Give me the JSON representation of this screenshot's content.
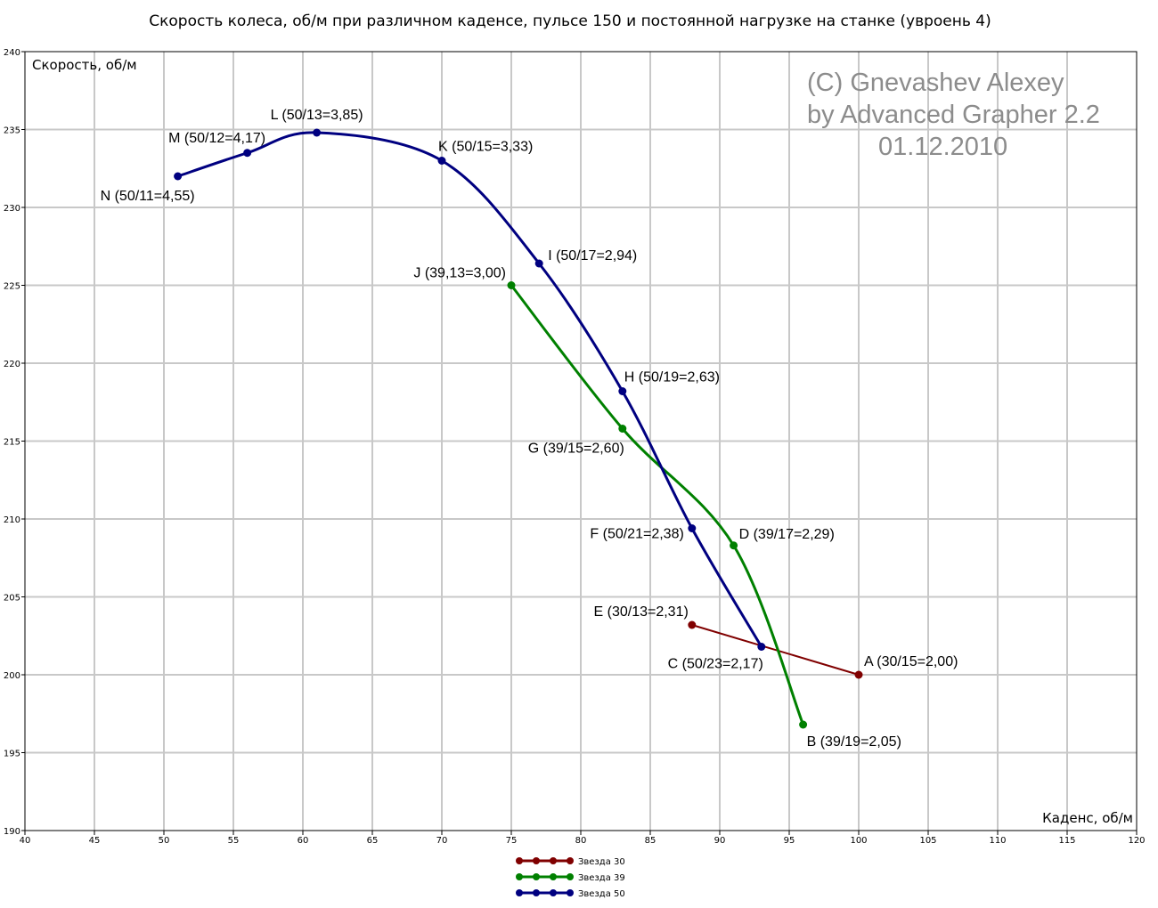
{
  "chart_data": {
    "type": "line",
    "title": "Скорость колеса, об/м при различном каденсе, пульсе 150 и постоянной нагрузке на станке (увроень 4)",
    "xlabel": "Каденс, об/м",
    "ylabel": "Скорость, об/м",
    "xlim": [
      40,
      120
    ],
    "ylim": [
      190,
      240
    ],
    "xticks": [
      "40",
      "45",
      "50",
      "55",
      "60",
      "65",
      "70",
      "75",
      "80",
      "85",
      "90",
      "95",
      "100",
      "105",
      "110",
      "115",
      "120"
    ],
    "yticks": [
      "190",
      "195",
      "200",
      "205",
      "210",
      "215",
      "220",
      "225",
      "230",
      "235",
      "240"
    ],
    "grid": true,
    "legend_position": "bottom-left",
    "series": [
      {
        "name": "Звезда 30",
        "color": "#800000",
        "points": [
          {
            "x": 88,
            "y": 203.2,
            "label": "E (30/13=2,31)"
          },
          {
            "x": 100,
            "y": 200.0,
            "label": "A (30/15=2,00)"
          }
        ]
      },
      {
        "name": "Звезда 39",
        "color": "#008000",
        "points": [
          {
            "x": 75,
            "y": 225.0,
            "label": "J (39,13=3,00)"
          },
          {
            "x": 83,
            "y": 215.8,
            "label": "G (39/15=2,60)"
          },
          {
            "x": 91,
            "y": 208.3,
            "label": "D (39/17=2,29)"
          },
          {
            "x": 96,
            "y": 196.8,
            "label": "B (39/19=2,05)"
          }
        ]
      },
      {
        "name": "Звезда 50",
        "color": "#000080",
        "points": [
          {
            "x": 51,
            "y": 232.0,
            "label": "N (50/11=4,55)"
          },
          {
            "x": 56,
            "y": 233.5,
            "label": "M (50/12=4,17)"
          },
          {
            "x": 61,
            "y": 234.8,
            "label": "L (50/13=3,85)"
          },
          {
            "x": 70,
            "y": 233.0,
            "label": "K (50/15=3,33)"
          },
          {
            "x": 77,
            "y": 226.4,
            "label": "I (50/17=2,94)"
          },
          {
            "x": 83,
            "y": 218.2,
            "label": "H (50/19=2,63)"
          },
          {
            "x": 88,
            "y": 209.4,
            "label": "F (50/21=2,38)"
          },
          {
            "x": 93,
            "y": 201.8,
            "label": "C (50/23=2,17)"
          }
        ]
      }
    ],
    "watermark": [
      "(C) Gnevashev Alexey",
      "by Advanced Grapher 2.2",
      "01.12.2010"
    ]
  }
}
